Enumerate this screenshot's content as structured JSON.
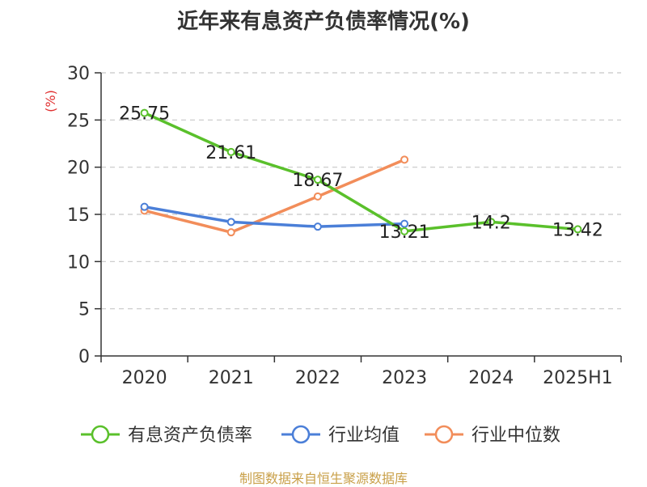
{
  "chart_data": {
    "type": "line",
    "title": "近年来有息资产负债率情况(%)",
    "ylabel": "(%)",
    "categories": [
      "2020",
      "2021",
      "2022",
      "2023",
      "2024",
      "2025H1"
    ],
    "yticks": [
      "0",
      "5",
      "10",
      "15",
      "20",
      "25",
      "30"
    ],
    "ylim": [
      0,
      30
    ],
    "grid": true,
    "legend_position": "bottom",
    "series": [
      {
        "name": "有息资产负债率",
        "color": "#5ac02b",
        "values": [
          25.75,
          21.61,
          18.67,
          13.21,
          14.2,
          13.42
        ],
        "labels": [
          "25.75",
          "21.61",
          "18.67",
          "13.21",
          "14.2",
          "13.42"
        ]
      },
      {
        "name": "行业均值",
        "color": "#4b7fd8",
        "values": [
          15.8,
          14.2,
          13.7,
          14.0,
          null,
          null
        ]
      },
      {
        "name": "行业中位数",
        "color": "#f28d5a",
        "values": [
          15.4,
          13.1,
          16.9,
          20.8,
          null,
          null
        ]
      }
    ]
  },
  "source": "制图数据来自恒生聚源数据库"
}
